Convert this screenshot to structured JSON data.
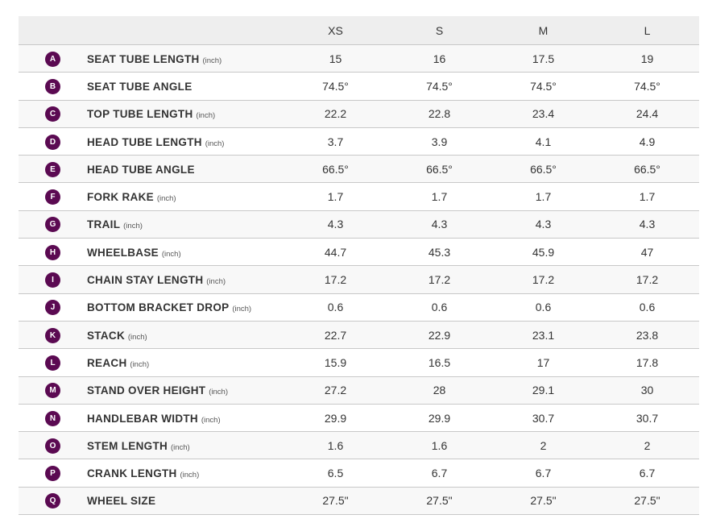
{
  "sizes": [
    "XS",
    "S",
    "M",
    "L"
  ],
  "colors": {
    "badge": "#5b0a52"
  },
  "rows": [
    {
      "letter": "A",
      "label": "SEAT TUBE LENGTH",
      "unit": "(inch)",
      "values": [
        "15",
        "16",
        "17.5",
        "19"
      ]
    },
    {
      "letter": "B",
      "label": "SEAT TUBE ANGLE",
      "unit": "",
      "values": [
        "74.5°",
        "74.5°",
        "74.5°",
        "74.5°"
      ]
    },
    {
      "letter": "C",
      "label": "TOP TUBE LENGTH",
      "unit": "(inch)",
      "values": [
        "22.2",
        "22.8",
        "23.4",
        "24.4"
      ]
    },
    {
      "letter": "D",
      "label": "HEAD TUBE LENGTH",
      "unit": "(inch)",
      "values": [
        "3.7",
        "3.9",
        "4.1",
        "4.9"
      ]
    },
    {
      "letter": "E",
      "label": "HEAD TUBE ANGLE",
      "unit": "",
      "values": [
        "66.5°",
        "66.5°",
        "66.5°",
        "66.5°"
      ]
    },
    {
      "letter": "F",
      "label": "FORK RAKE",
      "unit": "(inch)",
      "values": [
        "1.7",
        "1.7",
        "1.7",
        "1.7"
      ]
    },
    {
      "letter": "G",
      "label": "TRAIL",
      "unit": "(inch)",
      "values": [
        "4.3",
        "4.3",
        "4.3",
        "4.3"
      ]
    },
    {
      "letter": "H",
      "label": "WHEELBASE",
      "unit": "(inch)",
      "values": [
        "44.7",
        "45.3",
        "45.9",
        "47"
      ]
    },
    {
      "letter": "I",
      "label": "CHAIN STAY LENGTH",
      "unit": "(inch)",
      "values": [
        "17.2",
        "17.2",
        "17.2",
        "17.2"
      ]
    },
    {
      "letter": "J",
      "label": "BOTTOM BRACKET DROP",
      "unit": "(inch)",
      "values": [
        "0.6",
        "0.6",
        "0.6",
        "0.6"
      ]
    },
    {
      "letter": "K",
      "label": "STACK",
      "unit": "(inch)",
      "values": [
        "22.7",
        "22.9",
        "23.1",
        "23.8"
      ]
    },
    {
      "letter": "L",
      "label": "REACH",
      "unit": "(inch)",
      "values": [
        "15.9",
        "16.5",
        "17",
        "17.8"
      ]
    },
    {
      "letter": "M",
      "label": "STAND OVER HEIGHT",
      "unit": "(inch)",
      "values": [
        "27.2",
        "28",
        "29.1",
        "30"
      ]
    },
    {
      "letter": "N",
      "label": "HANDLEBAR WIDTH",
      "unit": "(inch)",
      "values": [
        "29.9",
        "29.9",
        "30.7",
        "30.7"
      ]
    },
    {
      "letter": "O",
      "label": "STEM LENGTH",
      "unit": "(inch)",
      "values": [
        "1.6",
        "1.6",
        "2",
        "2"
      ]
    },
    {
      "letter": "P",
      "label": "CRANK LENGTH",
      "unit": "(inch)",
      "values": [
        "6.5",
        "6.7",
        "6.7",
        "6.7"
      ]
    },
    {
      "letter": "Q",
      "label": "WHEEL SIZE",
      "unit": "",
      "values": [
        "27.5\"",
        "27.5\"",
        "27.5\"",
        "27.5\""
      ]
    }
  ]
}
